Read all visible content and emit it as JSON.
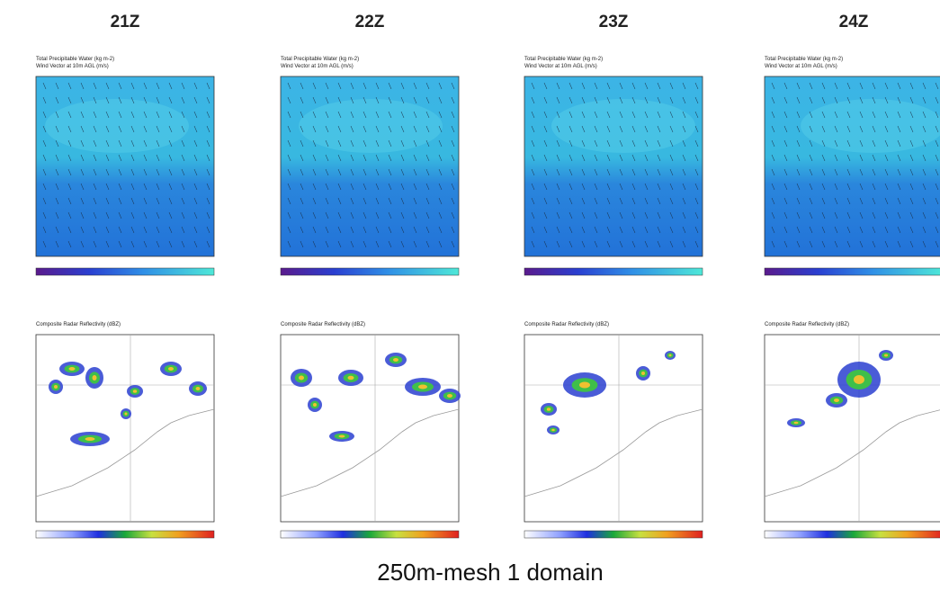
{
  "columns": [
    {
      "time": "21Z"
    },
    {
      "time": "22Z"
    },
    {
      "time": "23Z"
    },
    {
      "time": "24Z"
    }
  ],
  "top_panel": {
    "title_line1": "Total Precipitable Water  (kg m-2)",
    "title_line2": "Wind Vector at 10m AGL  (m/s)"
  },
  "bottom_panel": {
    "title": "Composite Radar Reflectivity  (dBZ)"
  },
  "caption": "250m-mesh 1 domain"
}
